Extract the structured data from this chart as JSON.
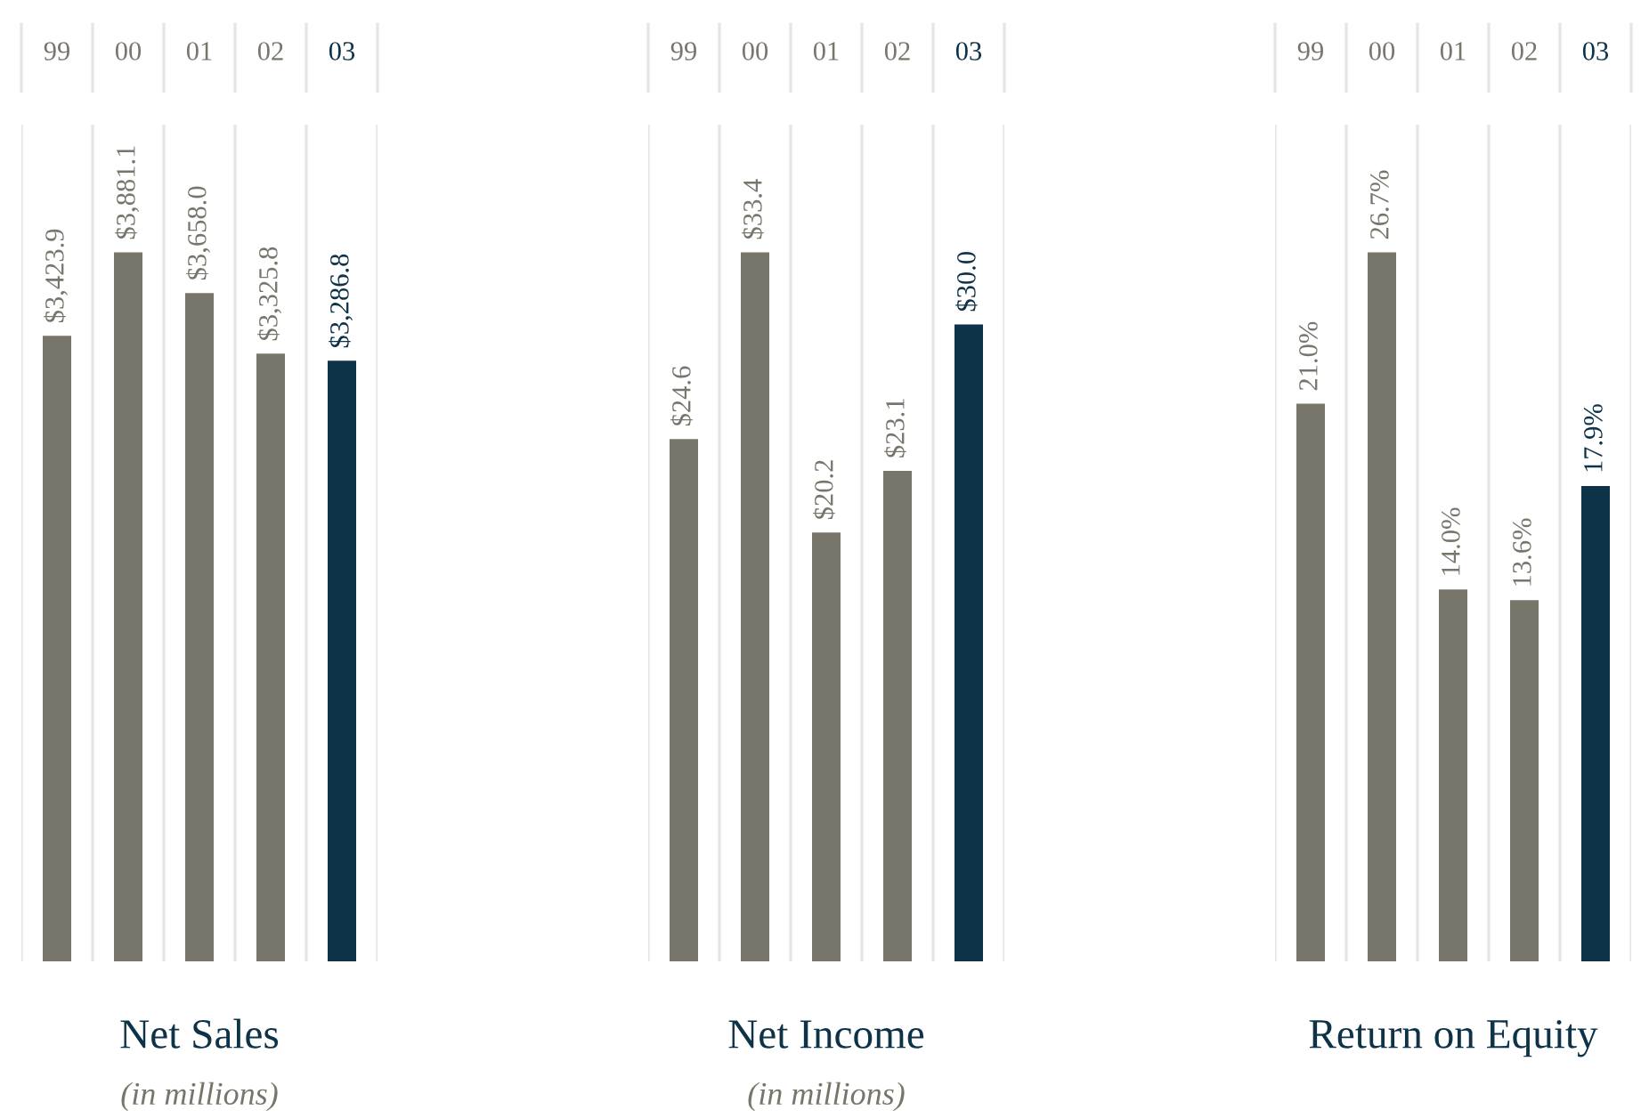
{
  "chart_data": [
    {
      "type": "bar",
      "title": "Net Sales",
      "subtitle": "(in millions)",
      "categories": [
        "99",
        "00",
        "01",
        "02",
        "03"
      ],
      "values": [
        3423.9,
        3881.1,
        3658.0,
        3325.8,
        3286.8
      ],
      "value_labels": [
        "$3,423.9",
        "$3,881.1",
        "$3,658.0",
        "$3,325.8",
        "$3,286.8"
      ],
      "colors": [
        "#78756b",
        "#78756b",
        "#78756b",
        "#78756b",
        "#0e3349"
      ],
      "grid": "x",
      "legend": false
    },
    {
      "type": "bar",
      "title": "Net Income",
      "subtitle": "(in millions)",
      "categories": [
        "99",
        "00",
        "01",
        "02",
        "03"
      ],
      "values": [
        24.6,
        33.4,
        20.2,
        23.1,
        30.0
      ],
      "value_labels": [
        "$24.6",
        "$33.4",
        "$20.2",
        "$23.1",
        "$30.0"
      ],
      "colors": [
        "#78756b",
        "#78756b",
        "#78756b",
        "#78756b",
        "#0e3349"
      ],
      "grid": "x",
      "legend": false
    },
    {
      "type": "bar",
      "title": "Return on Equity",
      "categories": [
        "99",
        "00",
        "01",
        "02",
        "03"
      ],
      "values": [
        21.0,
        26.7,
        14.0,
        13.6,
        17.9
      ],
      "value_labels": [
        "21.0%",
        "26.7%",
        "14.0%",
        "13.6%",
        "17.9%"
      ],
      "colors": [
        "#78756b",
        "#78756b",
        "#78756b",
        "#78756b",
        "#0e3349"
      ],
      "grid": "x",
      "legend": false
    }
  ]
}
